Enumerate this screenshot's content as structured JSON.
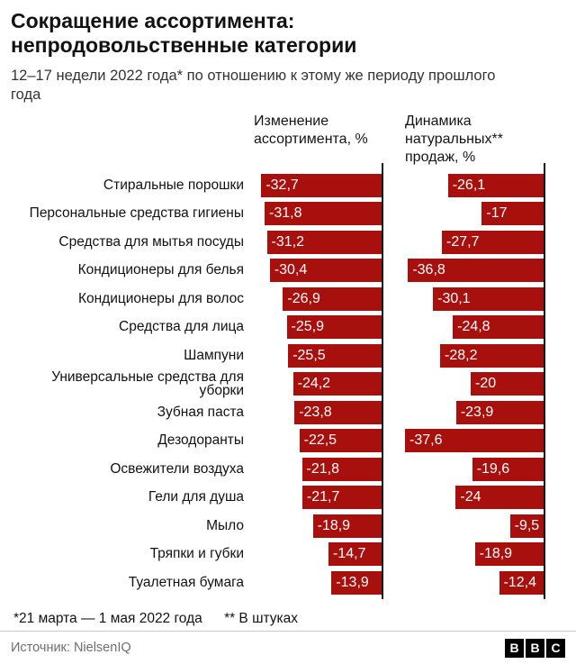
{
  "header": {
    "title_line1": "Сокращение ассортимента:",
    "title_line2": "непродовольственные категории",
    "subtitle": "12–17 недели 2022 года* по отношению к этому же периоду прошлого года"
  },
  "columns": {
    "col1_header": "Изменение ассортимента, %",
    "col2_header": "Динамика натуральных** продаж, %"
  },
  "chart_data": {
    "type": "bar",
    "orientation": "horizontal",
    "bar_color": "#a8100e",
    "axis_color": "#121212",
    "xlim": [
      -40,
      0
    ],
    "legend_position": "none",
    "grid": false,
    "categories": [
      "Стиральные порошки",
      "Персональные средства гигиены",
      "Средства для мытья посуды",
      "Кондиционеры для белья",
      "Кондиционеры для волос",
      "Средства для лица",
      "Шампуни",
      "Универсальные средства для уборки",
      "Зубная паста",
      "Дезодоранты",
      "Освежители воздуха",
      "Гели для душа",
      "Мыло",
      "Тряпки и губки",
      "Туалетная бумага"
    ],
    "series": [
      {
        "name": "Изменение ассортимента, %",
        "values": [
          -32.7,
          -31.8,
          -31.2,
          -30.4,
          -26.9,
          -25.9,
          -25.5,
          -24.2,
          -23.8,
          -22.5,
          -21.8,
          -21.7,
          -18.9,
          -14.7,
          -13.9
        ],
        "display_values": [
          "-32,7",
          "-31,8",
          "-31,2",
          "-30,4",
          "-26,9",
          "-25,9",
          "-25,5",
          "-24,2",
          "-23,8",
          "-22,5",
          "-21,8",
          "-21,7",
          "-18,9",
          "-14,7",
          "-13,9"
        ]
      },
      {
        "name": "Динамика натуральных** продаж, %",
        "values": [
          -26.1,
          -17,
          -27.7,
          -36.8,
          -30.1,
          -24.8,
          -28.2,
          -20,
          -23.9,
          -37.6,
          -19.6,
          -24,
          -9.5,
          -18.9,
          -12.4
        ],
        "display_values": [
          "-26,1",
          "-17",
          "-27,7",
          "-36,8",
          "-30,1",
          "-24,8",
          "-28,2",
          "-20",
          "-23,9",
          "-37,6",
          "-19,6",
          "-24",
          "-9,5",
          "-18,9",
          "-12,4"
        ]
      }
    ]
  },
  "footnotes": {
    "note1": "*21 марта — 1 мая 2022 года",
    "note2": "** В штуках"
  },
  "footer": {
    "source": "Источник:  NielsenIQ",
    "logo_letters": [
      "B",
      "B",
      "C"
    ]
  }
}
